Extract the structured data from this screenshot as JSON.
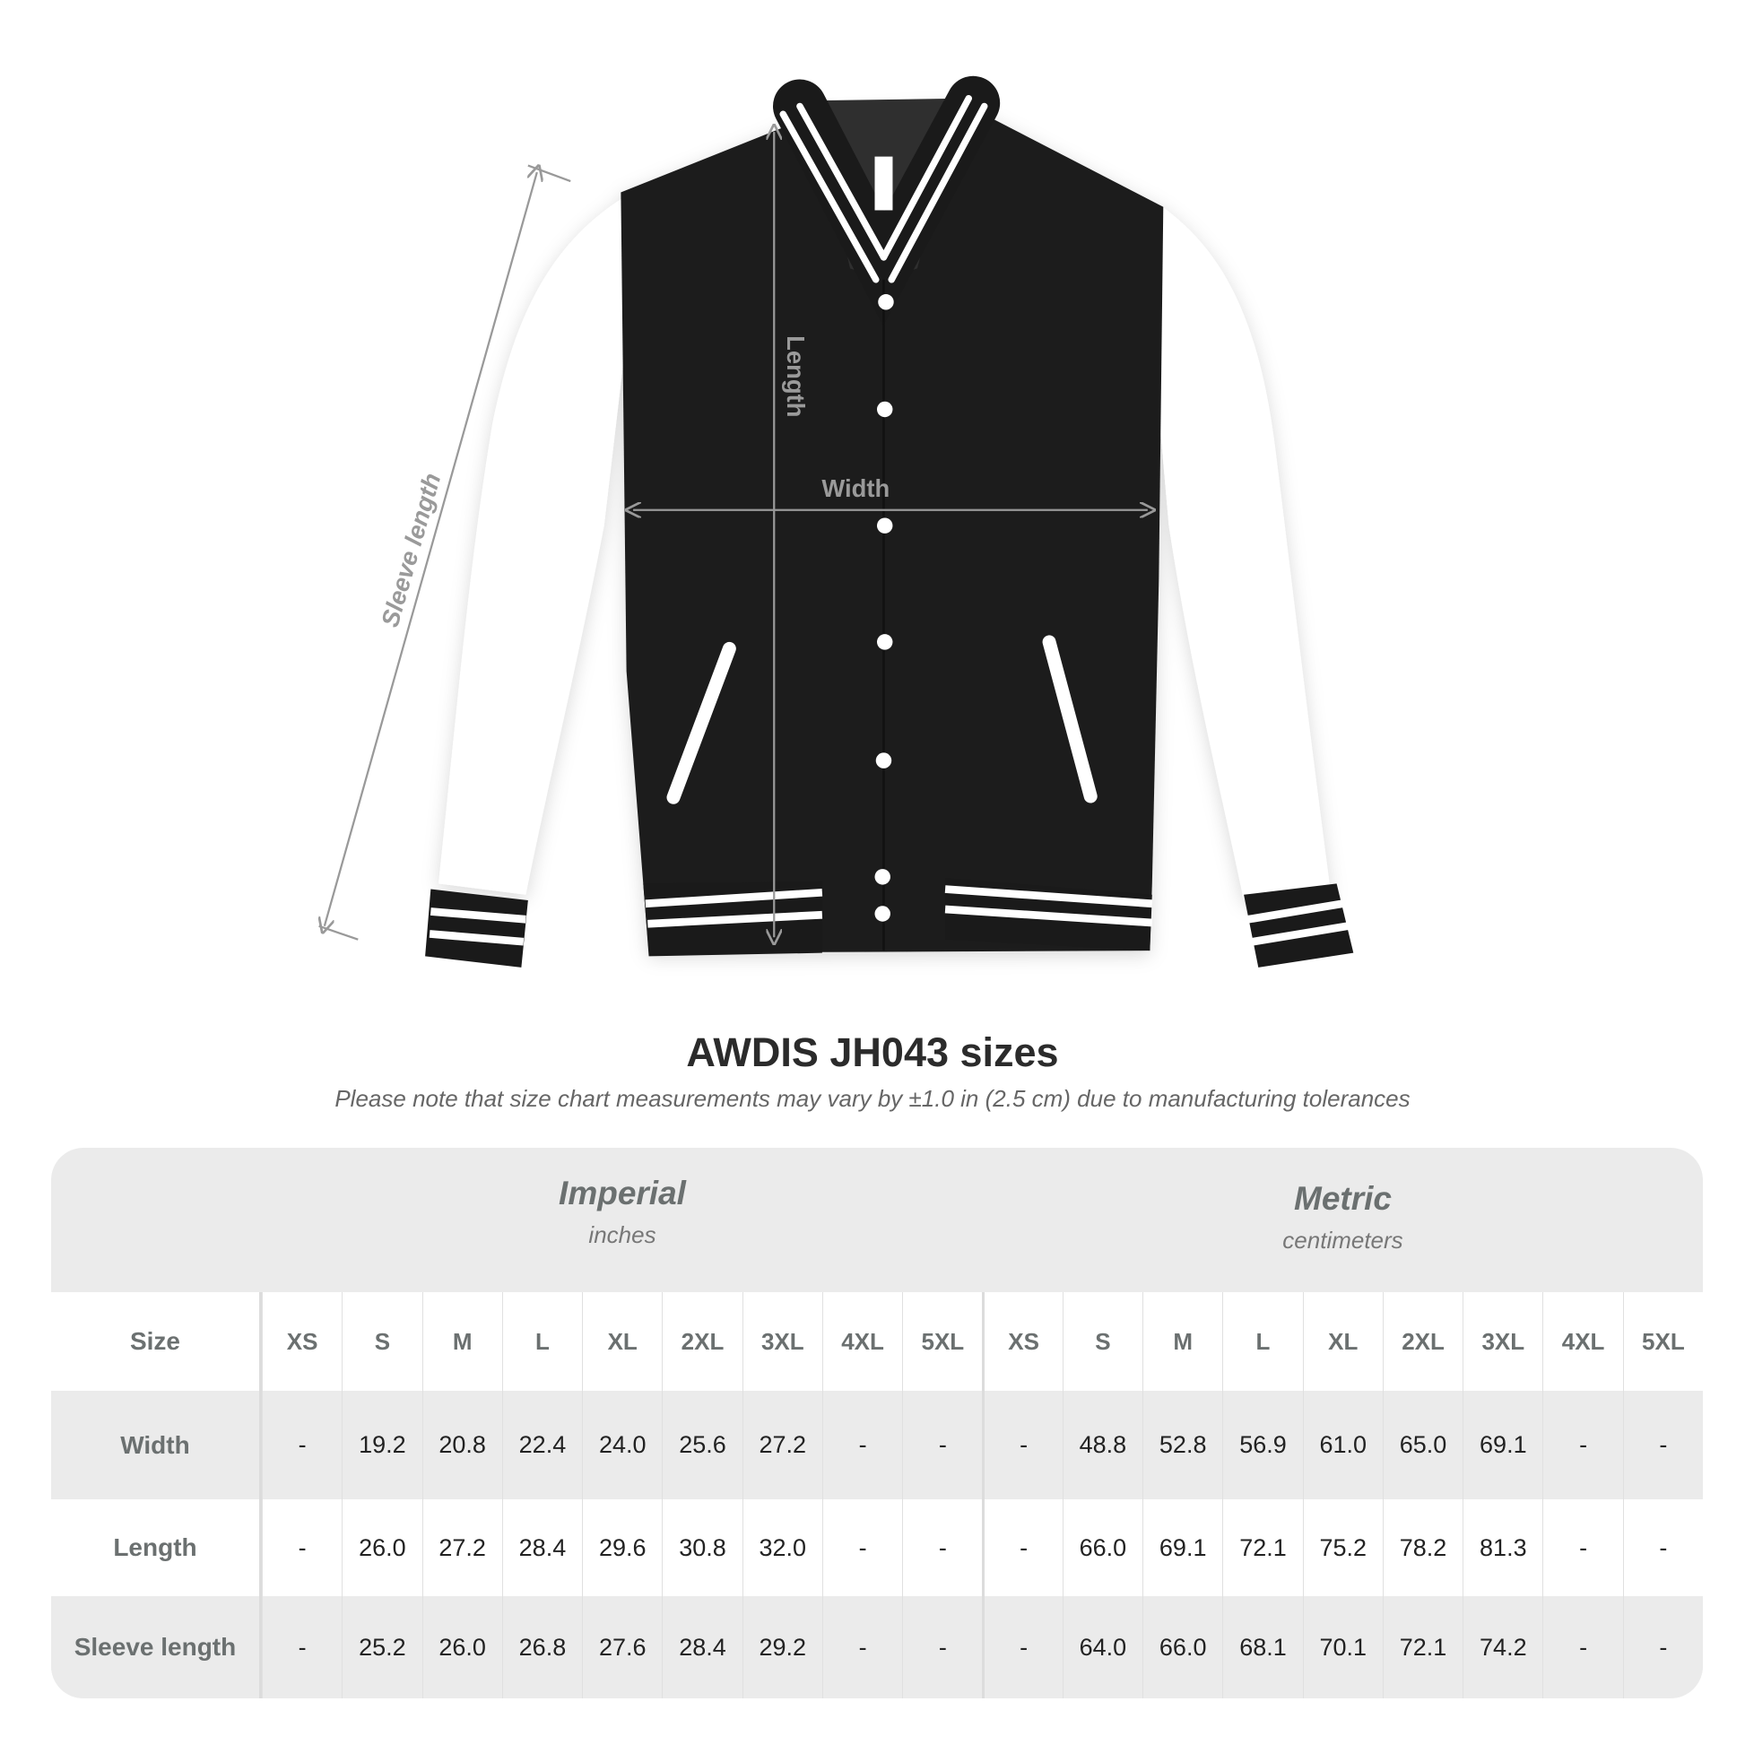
{
  "diagram": {
    "length_label": "Length",
    "width_label": "Width",
    "sleeve_label": "Sleeve length",
    "colors": {
      "body": "#1c1c1c",
      "sleeves": "#ffffff",
      "stripes": "#ffffff",
      "measure": "#999999"
    }
  },
  "title": "AWDIS JH043 sizes",
  "note": "Please note that size chart measurements may vary by ±1.0 in (2.5 cm) due to manufacturing tolerances",
  "table": {
    "imperial": {
      "title": "Imperial",
      "unit": "inches"
    },
    "metric": {
      "title": "Metric",
      "unit": "centimeters"
    },
    "size_label": "Size",
    "sizes": [
      "XS",
      "S",
      "M",
      "L",
      "XL",
      "2XL",
      "3XL",
      "4XL",
      "5XL"
    ],
    "rows": [
      {
        "label": "Width",
        "imperial": [
          "-",
          "19.2",
          "20.8",
          "22.4",
          "24.0",
          "25.6",
          "27.2",
          "-",
          "-"
        ],
        "metric": [
          "-",
          "48.8",
          "52.8",
          "56.9",
          "61.0",
          "65.0",
          "69.1",
          "-",
          "-"
        ]
      },
      {
        "label": "Length",
        "imperial": [
          "-",
          "26.0",
          "27.2",
          "28.4",
          "29.6",
          "30.8",
          "32.0",
          "-",
          "-"
        ],
        "metric": [
          "-",
          "66.0",
          "69.1",
          "72.1",
          "75.2",
          "78.2",
          "81.3",
          "-",
          "-"
        ]
      },
      {
        "label": "Sleeve length",
        "imperial": [
          "-",
          "25.2",
          "26.0",
          "26.8",
          "27.6",
          "28.4",
          "29.2",
          "-",
          "-"
        ],
        "metric": [
          "-",
          "64.0",
          "66.0",
          "68.1",
          "70.1",
          "72.1",
          "74.2",
          "-",
          "-"
        ]
      }
    ]
  }
}
